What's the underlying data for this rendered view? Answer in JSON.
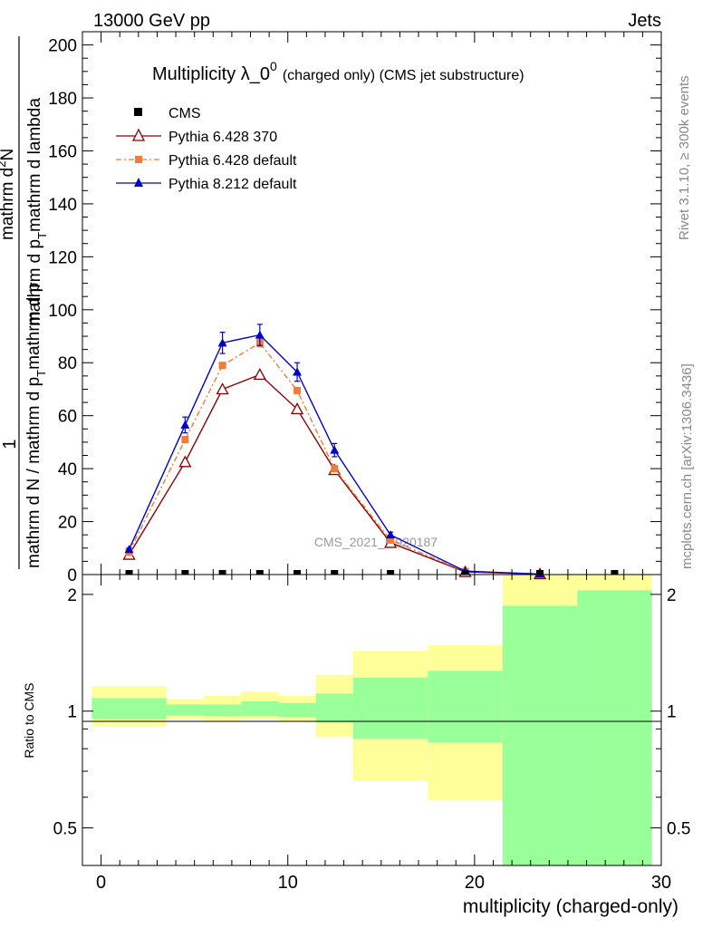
{
  "header": {
    "left": "13000 GeV pp",
    "right": "Jets"
  },
  "side_labels": {
    "rivet": "Rivet 3.1.10, ≥ 300k events",
    "mcplots": "mcplots.cern.ch [arXiv:1306.3436]"
  },
  "watermark": "CMS_2021_I1920187",
  "chart_data": {
    "type": "line",
    "title": "Multiplicity λ_0",
    "title_superscript": "0",
    "title_suffix": "(charged only) (CMS jet substructure)",
    "ylabel": {
      "line1_top": "1",
      "line1_bottom": "mathrm d N / mathrm d p",
      "line1_sub": "T",
      "line1_tail": "mathrm d p",
      "line2_top": "mathrm d",
      "line2_sup": "2",
      "line2_top_tail": "N",
      "line2_bottom": "mathrm d p",
      "line2_sub": "T",
      "line2_tail": "mathrm d lambda"
    },
    "xlabel": "multiplicity (charged-only)",
    "ratio_ylabel": "Ratio to CMS",
    "xlim": [
      -1,
      30
    ],
    "ylim": [
      0,
      205
    ],
    "ratio_ylim": [
      0.4,
      2.25
    ],
    "xticks": [
      0,
      10,
      20,
      30
    ],
    "yticks": [
      0,
      20,
      40,
      60,
      80,
      100,
      120,
      140,
      160,
      180,
      200
    ],
    "ratio_yticks": [
      0.5,
      1,
      2
    ],
    "ratio_ytick_labels": [
      "0.5",
      "1",
      "2"
    ],
    "legend": [
      {
        "name": "CMS",
        "style": "data"
      },
      {
        "name": "Pythia 6.428 370",
        "style": "open-triangle"
      },
      {
        "name": "Pythia 6.428 default",
        "style": "square-dashdot"
      },
      {
        "name": "Pythia 8.212 default",
        "style": "filled-triangle"
      }
    ],
    "cms_x": [
      1.5,
      4.5,
      6.5,
      8.5,
      10.5,
      12.5,
      15.5,
      19.5,
      23.5,
      27.5
    ],
    "bins": [
      {
        "lo": -0.5,
        "hi": 3.5
      },
      {
        "lo": 3.5,
        "hi": 5.5
      },
      {
        "lo": 5.5,
        "hi": 7.5
      },
      {
        "lo": 7.5,
        "hi": 9.5
      },
      {
        "lo": 9.5,
        "hi": 11.5
      },
      {
        "lo": 11.5,
        "hi": 13.5
      },
      {
        "lo": 13.5,
        "hi": 17.5
      },
      {
        "lo": 17.5,
        "hi": 21.5
      },
      {
        "lo": 21.5,
        "hi": 25.5
      },
      {
        "lo": 25.5,
        "hi": 29.5
      }
    ],
    "series": [
      {
        "name": "Pythia 6.428 370",
        "color": "#8b0000",
        "marker": "open-triangle",
        "x": [
          1.5,
          4.5,
          6.5,
          8.5,
          10.5,
          12.5,
          15.5,
          19.5,
          23.5
        ],
        "y": [
          7.5,
          42.5,
          70,
          75.5,
          62.5,
          39.5,
          12,
          1,
          0.2
        ],
        "err": [
          0,
          0,
          0,
          0,
          0,
          0,
          0,
          0,
          0
        ]
      },
      {
        "name": "Pythia 6.428 default",
        "color": "#f07c3a",
        "marker": "square",
        "x": [
          1.5,
          4.5,
          6.5,
          8.5,
          10.5,
          12.5,
          15.5,
          19.5,
          23.5
        ],
        "y": [
          8.5,
          51,
          79,
          87.5,
          69.5,
          40,
          13,
          1.2,
          0.2
        ],
        "err": [
          0,
          0,
          0,
          1.5,
          0,
          0,
          0,
          0,
          0
        ]
      },
      {
        "name": "Pythia 8.212 default",
        "color": "#0000cc",
        "marker": "filled-triangle",
        "x": [
          1.5,
          4.5,
          6.5,
          8.5,
          10.5,
          12.5,
          15.5,
          19.5,
          23.5
        ],
        "y": [
          9.5,
          56.5,
          87.5,
          90.5,
          76.5,
          47,
          15,
          1.3,
          0.2
        ],
        "err": [
          0.5,
          3,
          4,
          4,
          3.5,
          2.5,
          1,
          0.2,
          0.05
        ]
      }
    ],
    "ratio_bands": {
      "outer": [
        {
          "lo": -0.5,
          "hi": 3.5,
          "down": 0.915,
          "up": 1.16
        },
        {
          "lo": 3.5,
          "hi": 5.5,
          "down": 0.955,
          "up": 1.075
        },
        {
          "lo": 5.5,
          "hi": 7.5,
          "down": 0.945,
          "up": 1.095
        },
        {
          "lo": 7.5,
          "hi": 9.5,
          "down": 0.955,
          "up": 1.12
        },
        {
          "lo": 9.5,
          "hi": 11.5,
          "down": 0.945,
          "up": 1.095
        },
        {
          "lo": 11.5,
          "hi": 13.5,
          "down": 0.86,
          "up": 1.24
        },
        {
          "lo": 13.5,
          "hi": 17.5,
          "down": 0.66,
          "up": 1.43
        },
        {
          "lo": 17.5,
          "hi": 21.5,
          "down": 0.59,
          "up": 1.48
        },
        {
          "lo": 21.5,
          "hi": 25.5,
          "down": 0.4,
          "up": 2.25
        },
        {
          "lo": 25.5,
          "hi": 29.5,
          "down": 0.4,
          "up": 2.25
        }
      ],
      "inner": [
        {
          "lo": -0.5,
          "hi": 3.5,
          "down": 0.955,
          "up": 1.08
        },
        {
          "lo": 3.5,
          "hi": 5.5,
          "down": 0.975,
          "up": 1.04
        },
        {
          "lo": 5.5,
          "hi": 7.5,
          "down": 0.97,
          "up": 1.04
        },
        {
          "lo": 7.5,
          "hi": 9.5,
          "down": 0.97,
          "up": 1.06
        },
        {
          "lo": 9.5,
          "hi": 11.5,
          "down": 0.965,
          "up": 1.05
        },
        {
          "lo": 11.5,
          "hi": 13.5,
          "down": 0.935,
          "up": 1.11
        },
        {
          "lo": 13.5,
          "hi": 17.5,
          "down": 0.85,
          "up": 1.22
        },
        {
          "lo": 17.5,
          "hi": 21.5,
          "down": 0.83,
          "up": 1.27
        },
        {
          "lo": 21.5,
          "hi": 25.5,
          "down": 0.4,
          "up": 1.87
        },
        {
          "lo": 25.5,
          "hi": 29.5,
          "down": 0.4,
          "up": 2.05
        }
      ]
    },
    "colors": {
      "outer_band": "#ffff99",
      "inner_band": "#99ff99"
    }
  }
}
